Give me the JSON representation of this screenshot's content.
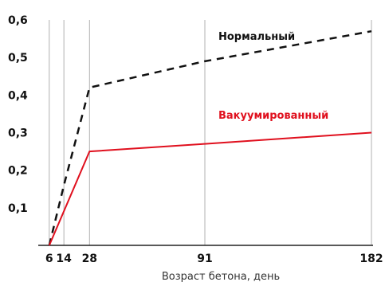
{
  "chart_data": {
    "type": "line",
    "xlabel": "Возраст бетона, день",
    "x_ticks": [
      6,
      14,
      28,
      91,
      182
    ],
    "y_ticks": [
      {
        "value": 0.1,
        "label": "0,1"
      },
      {
        "value": 0.2,
        "label": "0,2"
      },
      {
        "value": 0.3,
        "label": "0,3"
      },
      {
        "value": 0.4,
        "label": "0,4"
      },
      {
        "value": 0.5,
        "label": "0,5"
      },
      {
        "value": 0.6,
        "label": "0,6"
      }
    ],
    "xlim": [
      0,
      182
    ],
    "ylim": [
      0,
      0.6
    ],
    "series": [
      {
        "name": "Нормальный",
        "style": "dashed",
        "color": "#111111",
        "points": [
          [
            6,
            0
          ],
          [
            14,
            0.16
          ],
          [
            28,
            0.42
          ],
          [
            91,
            0.49
          ],
          [
            182,
            0.57
          ]
        ]
      },
      {
        "name": "Вакуумированный",
        "style": "solid",
        "color": "#e0101e",
        "points": [
          [
            6,
            0
          ],
          [
            28,
            0.25
          ],
          [
            91,
            0.27
          ],
          [
            182,
            0.3
          ]
        ]
      }
    ]
  }
}
